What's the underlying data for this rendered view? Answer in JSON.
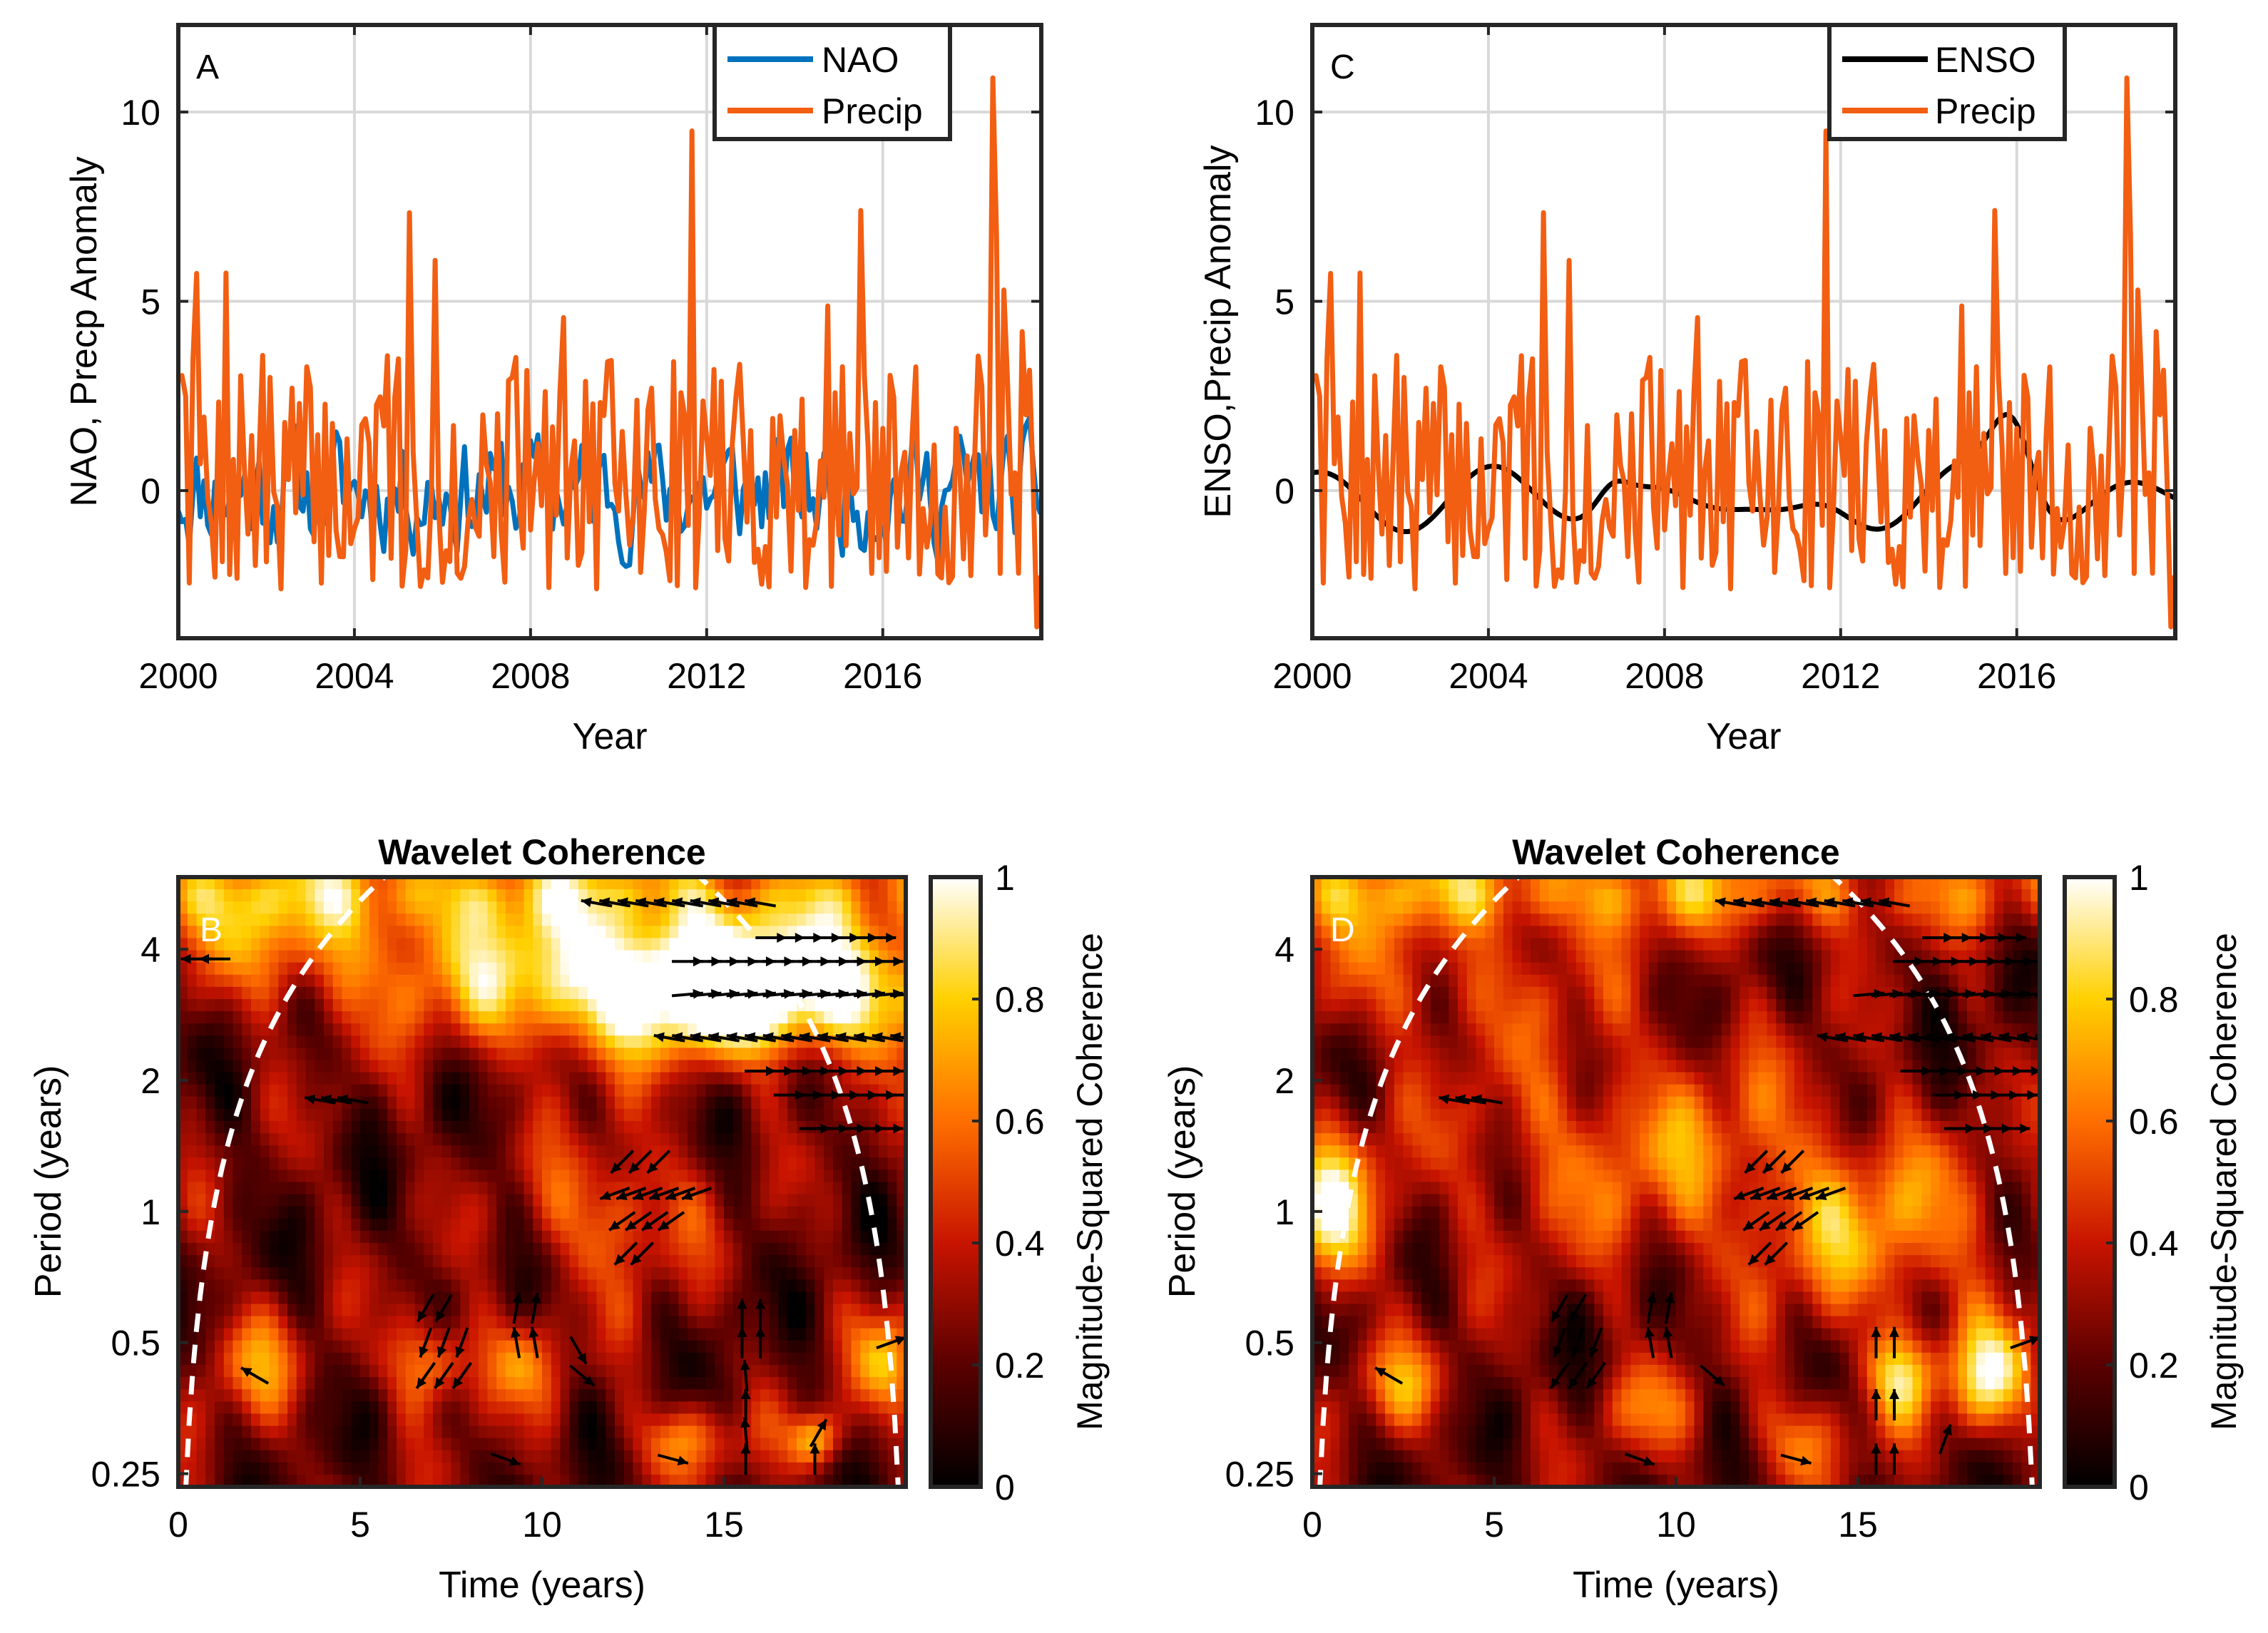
{
  "colors": {
    "nao": "#0072BD",
    "enso": "#000000",
    "precip": "#F25E12",
    "grid": "#d9d9d9",
    "coi": "#ffffff"
  },
  "chart_data": [
    {
      "id": "A",
      "type": "line",
      "panel_label": "A",
      "xlabel": "Year",
      "ylabel": "NAO, Precp Anomaly",
      "xlim": [
        2000,
        2019.6
      ],
      "ylim": [
        -3.9,
        12.3
      ],
      "xticks": [
        2000,
        2004,
        2008,
        2012,
        2016
      ],
      "xtick_labels": [
        "2000",
        "2004",
        "2008",
        "2012",
        "2016"
      ],
      "yticks": [
        0,
        5,
        10
      ],
      "ytick_labels": [
        "0",
        "5",
        "10"
      ],
      "legend": {
        "position": "top-right",
        "entries": [
          "NAO",
          "Precip"
        ]
      },
      "series": [
        {
          "name": "NAO",
          "kind": "nao",
          "seed": 11
        },
        {
          "name": "Precip",
          "kind": "precip",
          "seed": 7
        }
      ]
    },
    {
      "id": "C",
      "type": "line",
      "panel_label": "C",
      "xlabel": "Year",
      "ylabel": "ENSO,Precip Anomaly",
      "xlim": [
        2000,
        2019.6
      ],
      "ylim": [
        -3.9,
        12.3
      ],
      "xticks": [
        2000,
        2004,
        2008,
        2012,
        2016
      ],
      "xtick_labels": [
        "2000",
        "2004",
        "2008",
        "2012",
        "2016"
      ],
      "yticks": [
        0,
        5,
        10
      ],
      "ytick_labels": [
        "0",
        "5",
        "10"
      ],
      "legend": {
        "position": "top-right",
        "entries": [
          "ENSO",
          "Precip"
        ]
      },
      "series": [
        {
          "name": "ENSO",
          "kind": "enso",
          "seed": 3
        },
        {
          "name": "Precip",
          "kind": "precip",
          "seed": 7
        }
      ]
    },
    {
      "id": "B",
      "type": "heatmap",
      "panel_label": "B",
      "title": "Wavelet Coherence",
      "xlabel": "Time (years)",
      "ylabel": "Period (years)",
      "xlim": [
        0,
        20
      ],
      "ylim_log2": [
        -2.1,
        2.55
      ],
      "xticks": [
        0,
        5,
        10,
        15
      ],
      "xtick_labels": [
        "0",
        "5",
        "10",
        "15"
      ],
      "yticks": [
        0.25,
        0.5,
        1,
        2,
        4
      ],
      "ytick_labels": [
        "0.25",
        "0.5",
        "1",
        "2",
        "4"
      ],
      "colorbar": {
        "label": "Magnitude-Squared Coherence",
        "ticks": [
          0,
          0.2,
          0.4,
          0.6,
          0.8,
          1
        ],
        "tick_labels": [
          "0",
          "0.2",
          "0.4",
          "0.6",
          "0.8",
          "1"
        ]
      },
      "blobs": [
        {
          "t": 16,
          "p": 3.2,
          "st": 4.5,
          "sp": 0.35,
          "a": 0.8
        },
        {
          "t": 12,
          "p": 3.6,
          "st": 5,
          "sp": 0.4,
          "a": 0.45
        },
        {
          "t": 5,
          "p": 5.5,
          "st": 14,
          "sp": 0.25,
          "a": 0.45
        },
        {
          "t": 12,
          "p": 1.0,
          "st": 1.5,
          "sp": 0.4,
          "a": 0.4
        },
        {
          "t": 7,
          "p": 0.45,
          "st": 0.8,
          "sp": 0.25,
          "a": 0.5
        },
        {
          "t": 17.5,
          "p": 0.3,
          "st": 0.5,
          "sp": 0.15,
          "a": 0.55
        },
        {
          "t": 2,
          "p": 0.45,
          "st": 1,
          "sp": 0.3,
          "a": 0.35
        },
        {
          "t": 14,
          "p": 0.3,
          "st": 1,
          "sp": 0.2,
          "a": 0.4
        },
        {
          "t": 9.5,
          "p": 0.45,
          "st": 0.8,
          "sp": 0.25,
          "a": 0.35
        },
        {
          "t": 19.5,
          "p": 0.45,
          "st": 0.7,
          "sp": 0.3,
          "a": 0.45
        },
        {
          "t": 3,
          "p": 4,
          "st": 2,
          "sp": 0.3,
          "a": 0.3
        }
      ],
      "arrows": [
        {
          "t": 11.5,
          "p": 5.1,
          "angle": 170,
          "count": 10,
          "dt": 0.5
        },
        {
          "t": 16.3,
          "p": 4.25,
          "angle": 0,
          "count": 7,
          "dt": 0.5
        },
        {
          "t": 14,
          "p": 3.75,
          "angle": 0,
          "count": 12,
          "dt": 0.5
        },
        {
          "t": 14,
          "p": 3.15,
          "angle": 5,
          "count": 18,
          "dt": 0.5
        },
        {
          "t": 13.5,
          "p": 2.5,
          "angle": 170,
          "count": 20,
          "dt": 0.5
        },
        {
          "t": 16,
          "p": 2.1,
          "angle": 0,
          "count": 12,
          "dt": 0.5
        },
        {
          "t": 16.8,
          "p": 1.85,
          "angle": 0,
          "count": 8,
          "dt": 0.5
        },
        {
          "t": 17.5,
          "p": 1.55,
          "angle": 0,
          "count": 5,
          "dt": 0.5
        },
        {
          "t": 3.9,
          "p": 1.8,
          "angle": 170,
          "count": 3,
          "dt": 0.45
        },
        {
          "t": 0.5,
          "p": 3.8,
          "angle": 180,
          "count": 2,
          "dt": 0.5
        },
        {
          "t": 12.2,
          "p": 1.3,
          "angle": 225,
          "count": 3,
          "dt": 0.5
        },
        {
          "t": 12,
          "p": 1.1,
          "angle": 200,
          "count": 6,
          "dt": 0.45
        },
        {
          "t": 12.2,
          "p": 0.95,
          "angle": 215,
          "count": 4,
          "dt": 0.45
        },
        {
          "t": 12.3,
          "p": 0.8,
          "angle": 225,
          "count": 2,
          "dt": 0.45
        },
        {
          "t": 6.8,
          "p": 0.6,
          "angle": 240,
          "count": 2,
          "dt": 0.5
        },
        {
          "t": 6.8,
          "p": 0.5,
          "angle": 250,
          "count": 3,
          "dt": 0.5
        },
        {
          "t": 6.8,
          "p": 0.42,
          "angle": 235,
          "count": 3,
          "dt": 0.5
        },
        {
          "t": 9.3,
          "p": 0.6,
          "angle": 80,
          "count": 2,
          "dt": 0.5
        },
        {
          "t": 9.3,
          "p": 0.5,
          "angle": 100,
          "count": 2,
          "dt": 0.5
        },
        {
          "t": 11,
          "p": 0.48,
          "angle": 300,
          "count": 1,
          "dt": 0.5
        },
        {
          "t": 11.1,
          "p": 0.42,
          "angle": 320,
          "count": 1,
          "dt": 0.5
        },
        {
          "t": 15.5,
          "p": 0.58,
          "angle": 90,
          "count": 2,
          "dt": 0.5
        },
        {
          "t": 15.5,
          "p": 0.5,
          "angle": 90,
          "count": 2,
          "dt": 0.5
        },
        {
          "t": 15.6,
          "p": 0.42,
          "angle": 95,
          "count": 1,
          "dt": 0.5
        },
        {
          "t": 15.6,
          "p": 0.36,
          "angle": 90,
          "count": 1,
          "dt": 0.5
        },
        {
          "t": 15.6,
          "p": 0.31,
          "angle": 95,
          "count": 1,
          "dt": 0.5
        },
        {
          "t": 15.6,
          "p": 0.27,
          "angle": 90,
          "count": 1,
          "dt": 0.5
        },
        {
          "t": 17.6,
          "p": 0.31,
          "angle": 60,
          "count": 1,
          "dt": 0.5
        },
        {
          "t": 17.5,
          "p": 0.27,
          "angle": 90,
          "count": 1,
          "dt": 0.5
        },
        {
          "t": 2.1,
          "p": 0.42,
          "angle": 150,
          "count": 1,
          "dt": 0.5
        },
        {
          "t": 9,
          "p": 0.27,
          "angle": 340,
          "count": 1,
          "dt": 0.5
        },
        {
          "t": 13.6,
          "p": 0.27,
          "angle": 345,
          "count": 1,
          "dt": 0.5
        },
        {
          "t": 19.6,
          "p": 0.5,
          "angle": 20,
          "count": 1,
          "dt": 0.5
        }
      ]
    },
    {
      "id": "D",
      "type": "heatmap",
      "panel_label": "D",
      "title": "Wavelet Coherence",
      "xlabel": "Time (years)",
      "ylabel": "Period (years)",
      "xlim": [
        0,
        20
      ],
      "ylim_log2": [
        -2.1,
        2.55
      ],
      "xticks": [
        0,
        5,
        10,
        15
      ],
      "xtick_labels": [
        "0",
        "5",
        "10",
        "15"
      ],
      "yticks": [
        0.25,
        0.5,
        1,
        2,
        4
      ],
      "ytick_labels": [
        "0.25",
        "0.5",
        "1",
        "2",
        "4"
      ],
      "colorbar": {
        "label": "Magnitude-Squared Coherence",
        "ticks": [
          0,
          0.2,
          0.4,
          0.6,
          0.8,
          1
        ],
        "tick_labels": [
          "0",
          "0.2",
          "0.4",
          "0.6",
          "0.8",
          "1"
        ]
      },
      "blobs": [
        {
          "t": 5,
          "p": 5.5,
          "st": 14,
          "sp": 0.25,
          "a": 0.45
        },
        {
          "t": 3,
          "p": 3.4,
          "st": 3.5,
          "sp": 0.35,
          "a": 0.25
        },
        {
          "t": 9,
          "p": 1.4,
          "st": 4,
          "sp": 0.6,
          "a": 0.35
        },
        {
          "t": 0.5,
          "p": 1.0,
          "st": 1,
          "sp": 0.4,
          "a": 0.65
        },
        {
          "t": 15.5,
          "p": 0.9,
          "st": 2.5,
          "sp": 0.5,
          "a": 0.4
        },
        {
          "t": 18.6,
          "p": 0.42,
          "st": 0.8,
          "sp": 0.3,
          "a": 0.65
        },
        {
          "t": 16.2,
          "p": 0.42,
          "st": 0.7,
          "sp": 0.25,
          "a": 0.55
        },
        {
          "t": 2.5,
          "p": 0.4,
          "st": 1,
          "sp": 0.25,
          "a": 0.35
        },
        {
          "t": 9.2,
          "p": 0.35,
          "st": 1,
          "sp": 0.25,
          "a": 0.3
        },
        {
          "t": 13.5,
          "p": 0.3,
          "st": 1,
          "sp": 0.25,
          "a": 0.35
        }
      ],
      "arrows": [
        {
          "t": 11.5,
          "p": 5.1,
          "angle": 170,
          "count": 10,
          "dt": 0.5
        },
        {
          "t": 17.2,
          "p": 4.25,
          "angle": 0,
          "count": 5,
          "dt": 0.5
        },
        {
          "t": 16.4,
          "p": 3.75,
          "angle": 0,
          "count": 9,
          "dt": 0.5
        },
        {
          "t": 15.3,
          "p": 3.15,
          "angle": 5,
          "count": 14,
          "dt": 0.5
        },
        {
          "t": 14.3,
          "p": 2.5,
          "angle": 170,
          "count": 18,
          "dt": 0.5
        },
        {
          "t": 16.6,
          "p": 2.1,
          "angle": 0,
          "count": 10,
          "dt": 0.5
        },
        {
          "t": 17.5,
          "p": 1.85,
          "angle": 0,
          "count": 6,
          "dt": 0.5
        },
        {
          "t": 17.8,
          "p": 1.55,
          "angle": 0,
          "count": 4,
          "dt": 0.5
        },
        {
          "t": 3.9,
          "p": 1.8,
          "angle": 170,
          "count": 3,
          "dt": 0.45
        },
        {
          "t": 12.2,
          "p": 1.3,
          "angle": 225,
          "count": 3,
          "dt": 0.5
        },
        {
          "t": 12,
          "p": 1.1,
          "angle": 200,
          "count": 6,
          "dt": 0.45
        },
        {
          "t": 12.2,
          "p": 0.95,
          "angle": 215,
          "count": 4,
          "dt": 0.45
        },
        {
          "t": 12.3,
          "p": 0.8,
          "angle": 225,
          "count": 2,
          "dt": 0.45
        },
        {
          "t": 6.8,
          "p": 0.6,
          "angle": 240,
          "count": 2,
          "dt": 0.5
        },
        {
          "t": 6.8,
          "p": 0.5,
          "angle": 250,
          "count": 3,
          "dt": 0.5
        },
        {
          "t": 6.8,
          "p": 0.42,
          "angle": 235,
          "count": 3,
          "dt": 0.5
        },
        {
          "t": 9.3,
          "p": 0.6,
          "angle": 80,
          "count": 2,
          "dt": 0.5
        },
        {
          "t": 9.3,
          "p": 0.5,
          "angle": 100,
          "count": 2,
          "dt": 0.5
        },
        {
          "t": 11,
          "p": 0.42,
          "angle": 320,
          "count": 1,
          "dt": 0.5
        },
        {
          "t": 15.5,
          "p": 0.5,
          "angle": 90,
          "count": 2,
          "dt": 0.5
        },
        {
          "t": 15.5,
          "p": 0.36,
          "angle": 90,
          "count": 2,
          "dt": 0.5
        },
        {
          "t": 15.5,
          "p": 0.27,
          "angle": 90,
          "count": 2,
          "dt": 0.5
        },
        {
          "t": 17.4,
          "p": 0.3,
          "angle": 70,
          "count": 1,
          "dt": 0.5
        },
        {
          "t": 2.1,
          "p": 0.42,
          "angle": 150,
          "count": 1,
          "dt": 0.5
        },
        {
          "t": 9,
          "p": 0.27,
          "angle": 340,
          "count": 1,
          "dt": 0.5
        },
        {
          "t": 13.3,
          "p": 0.27,
          "angle": 345,
          "count": 1,
          "dt": 0.5
        },
        {
          "t": 19.6,
          "p": 0.5,
          "angle": 20,
          "count": 1,
          "dt": 0.5
        }
      ]
    }
  ]
}
